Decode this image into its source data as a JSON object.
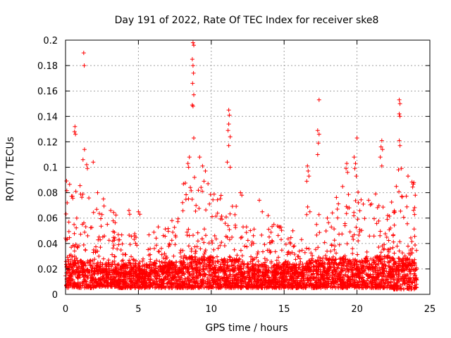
{
  "chart_data": {
    "type": "scatter",
    "title": "Day 191 of 2022, Rate Of TEC Index for receiver ske8",
    "xlabel": "GPS time / hours",
    "ylabel": "ROTI / TECUs",
    "xlim": [
      0,
      25
    ],
    "ylim": [
      0,
      0.2
    ],
    "xticks": [
      0,
      5,
      10,
      15,
      20,
      25
    ],
    "xtick_labels": [
      "0",
      "5",
      "10",
      "15",
      "20",
      "25"
    ],
    "yticks": [
      0,
      0.02,
      0.04,
      0.06,
      0.08,
      0.1,
      0.12,
      0.14,
      0.16,
      0.18,
      0.2
    ],
    "ytick_labels": [
      "0",
      "0.02",
      "0.04",
      "0.06",
      "0.08",
      "0.1",
      "0.12",
      "0.14",
      "0.16",
      "0.18",
      "0.2"
    ],
    "grid": true,
    "marker": "+",
    "color": "#ff0000",
    "series": [
      {
        "name": "ROTI",
        "points": [
          [
            1.25,
            0.19
          ],
          [
            1.28,
            0.18
          ],
          [
            0.65,
            0.132
          ],
          [
            0.62,
            0.128
          ],
          [
            0.68,
            0.126
          ],
          [
            1.3,
            0.114
          ],
          [
            1.2,
            0.106
          ],
          [
            1.45,
            0.102
          ],
          [
            1.9,
            0.104
          ],
          [
            1.5,
            0.099
          ],
          [
            8.75,
            0.198
          ],
          [
            8.8,
            0.196
          ],
          [
            8.7,
            0.185
          ],
          [
            8.75,
            0.18
          ],
          [
            8.78,
            0.174
          ],
          [
            8.72,
            0.166
          ],
          [
            8.8,
            0.157
          ],
          [
            8.7,
            0.149
          ],
          [
            8.75,
            0.148
          ],
          [
            8.8,
            0.123
          ],
          [
            8.5,
            0.108
          ],
          [
            8.4,
            0.103
          ],
          [
            8.45,
            0.1
          ],
          [
            9.2,
            0.108
          ],
          [
            9.4,
            0.101
          ],
          [
            9.6,
            0.097
          ],
          [
            9.5,
            0.089
          ],
          [
            8.85,
            0.092
          ],
          [
            11.2,
            0.145
          ],
          [
            11.25,
            0.141
          ],
          [
            11.2,
            0.134
          ],
          [
            11.15,
            0.129
          ],
          [
            11.3,
            0.124
          ],
          [
            11.2,
            0.117
          ],
          [
            11.1,
            0.104
          ],
          [
            11.3,
            0.1
          ],
          [
            17.4,
            0.153
          ],
          [
            17.3,
            0.129
          ],
          [
            17.4,
            0.126
          ],
          [
            17.35,
            0.119
          ],
          [
            17.3,
            0.11
          ],
          [
            16.6,
            0.101
          ],
          [
            16.65,
            0.097
          ],
          [
            16.7,
            0.093
          ],
          [
            16.55,
            0.089
          ],
          [
            19.3,
            0.103
          ],
          [
            19.25,
            0.099
          ],
          [
            19.35,
            0.096
          ],
          [
            19.8,
            0.108
          ],
          [
            19.9,
            0.103
          ],
          [
            19.85,
            0.099
          ],
          [
            19.95,
            0.093
          ],
          [
            20.0,
            0.123
          ],
          [
            21.7,
            0.121
          ],
          [
            21.65,
            0.116
          ],
          [
            21.75,
            0.114
          ],
          [
            21.6,
            0.108
          ],
          [
            21.7,
            0.101
          ],
          [
            22.9,
            0.153
          ],
          [
            22.95,
            0.15
          ],
          [
            22.9,
            0.142
          ],
          [
            22.95,
            0.14
          ],
          [
            22.9,
            0.121
          ],
          [
            22.95,
            0.117
          ],
          [
            23.05,
            0.099
          ],
          [
            22.85,
            0.098
          ],
          [
            23.5,
            0.093
          ],
          [
            4.35,
            0.066
          ],
          [
            4.4,
            0.063
          ],
          [
            5.0,
            0.065
          ],
          [
            5.1,
            0.063
          ],
          [
            7.3,
            0.058
          ],
          [
            12.0,
            0.08
          ],
          [
            12.1,
            0.078
          ],
          [
            13.3,
            0.074
          ],
          [
            13.5,
            0.065
          ],
          [
            13.9,
            0.062
          ],
          [
            14.3,
            0.055
          ],
          [
            15.6,
            0.05
          ],
          [
            2.2,
            0.08
          ],
          [
            2.6,
            0.075
          ],
          [
            3.1,
            0.066
          ],
          [
            20.8,
            0.074
          ],
          [
            21.0,
            0.071
          ],
          [
            23.9,
            0.088
          ],
          [
            24.0,
            0.078
          ]
        ],
        "bands": [
          {
            "x": [
              0.0,
              2.0
            ],
            "min": 0.005,
            "mode": 0.018,
            "max": 0.09
          },
          {
            "x": [
              2.0,
              3.5
            ],
            "min": 0.006,
            "mode": 0.017,
            "max": 0.07
          },
          {
            "x": [
              3.5,
              6.0
            ],
            "min": 0.005,
            "mode": 0.016,
            "max": 0.05
          },
          {
            "x": [
              6.0,
              8.0
            ],
            "min": 0.005,
            "mode": 0.017,
            "max": 0.06
          },
          {
            "x": [
              8.0,
              10.0
            ],
            "min": 0.005,
            "mode": 0.02,
            "max": 0.09
          },
          {
            "x": [
              10.0,
              12.0
            ],
            "min": 0.005,
            "mode": 0.019,
            "max": 0.08
          },
          {
            "x": [
              12.0,
              15.0
            ],
            "min": 0.005,
            "mode": 0.016,
            "max": 0.055
          },
          {
            "x": [
              15.0,
              16.5
            ],
            "min": 0.005,
            "mode": 0.016,
            "max": 0.045
          },
          {
            "x": [
              16.5,
              18.0
            ],
            "min": 0.005,
            "mode": 0.018,
            "max": 0.075
          },
          {
            "x": [
              18.0,
              20.5
            ],
            "min": 0.005,
            "mode": 0.019,
            "max": 0.085
          },
          {
            "x": [
              20.5,
              22.5
            ],
            "min": 0.005,
            "mode": 0.02,
            "max": 0.08
          },
          {
            "x": [
              22.5,
              24.1
            ],
            "min": 0.004,
            "mode": 0.019,
            "max": 0.09
          }
        ]
      }
    ]
  }
}
